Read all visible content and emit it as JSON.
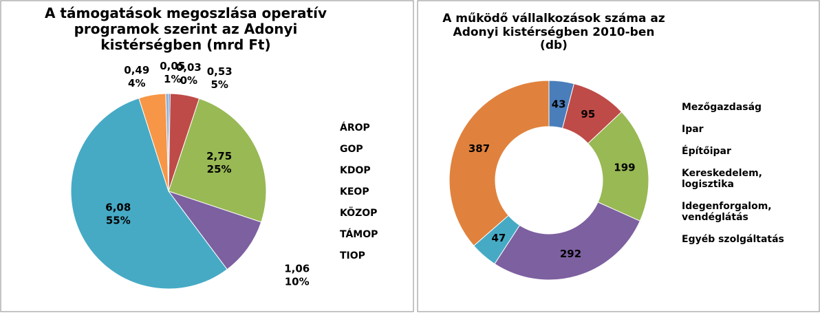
{
  "chart_data": [
    {
      "type": "pie",
      "title": "A támogatások megoszlása operatív programok szerint az Adonyi kistérségben (mrd Ft)",
      "categories": [
        "ÁROP",
        "GOP",
        "KDOP",
        "KEOP",
        "KÖZOP",
        "TÁMOP",
        "TIOP"
      ],
      "values": [
        0.03,
        0.53,
        2.75,
        1.06,
        6.08,
        0.49,
        0.05
      ],
      "value_labels": [
        "0,03",
        "0,53",
        "2,75",
        "1,06",
        "6,08",
        "0,49",
        "0,05"
      ],
      "percent_labels": [
        "0%",
        "5%",
        "25%",
        "10%",
        "55%",
        "4%",
        "1%"
      ],
      "colors": [
        "#4a7ebb",
        "#be4b48",
        "#98b954",
        "#7d60a0",
        "#46aac5",
        "#f79646",
        "#8fa7d0"
      ],
      "legend": "right"
    },
    {
      "type": "donut",
      "title": "A működő vállalkozások száma  az Adonyi kistérségben 2010-ben (db)",
      "categories": [
        "Mezőgazdaság",
        "Ipar",
        "Építőipar",
        "Kereskedelem, logisztika",
        "Idegenforgalom, vendéglátás",
        "Egyéb szolgáltatás"
      ],
      "values": [
        43,
        95,
        199,
        292,
        47,
        387
      ],
      "colors": [
        "#4a7ebb",
        "#be4b48",
        "#98b954",
        "#7d60a0",
        "#46aac5",
        "#e0823d"
      ],
      "legend": "right"
    }
  ]
}
